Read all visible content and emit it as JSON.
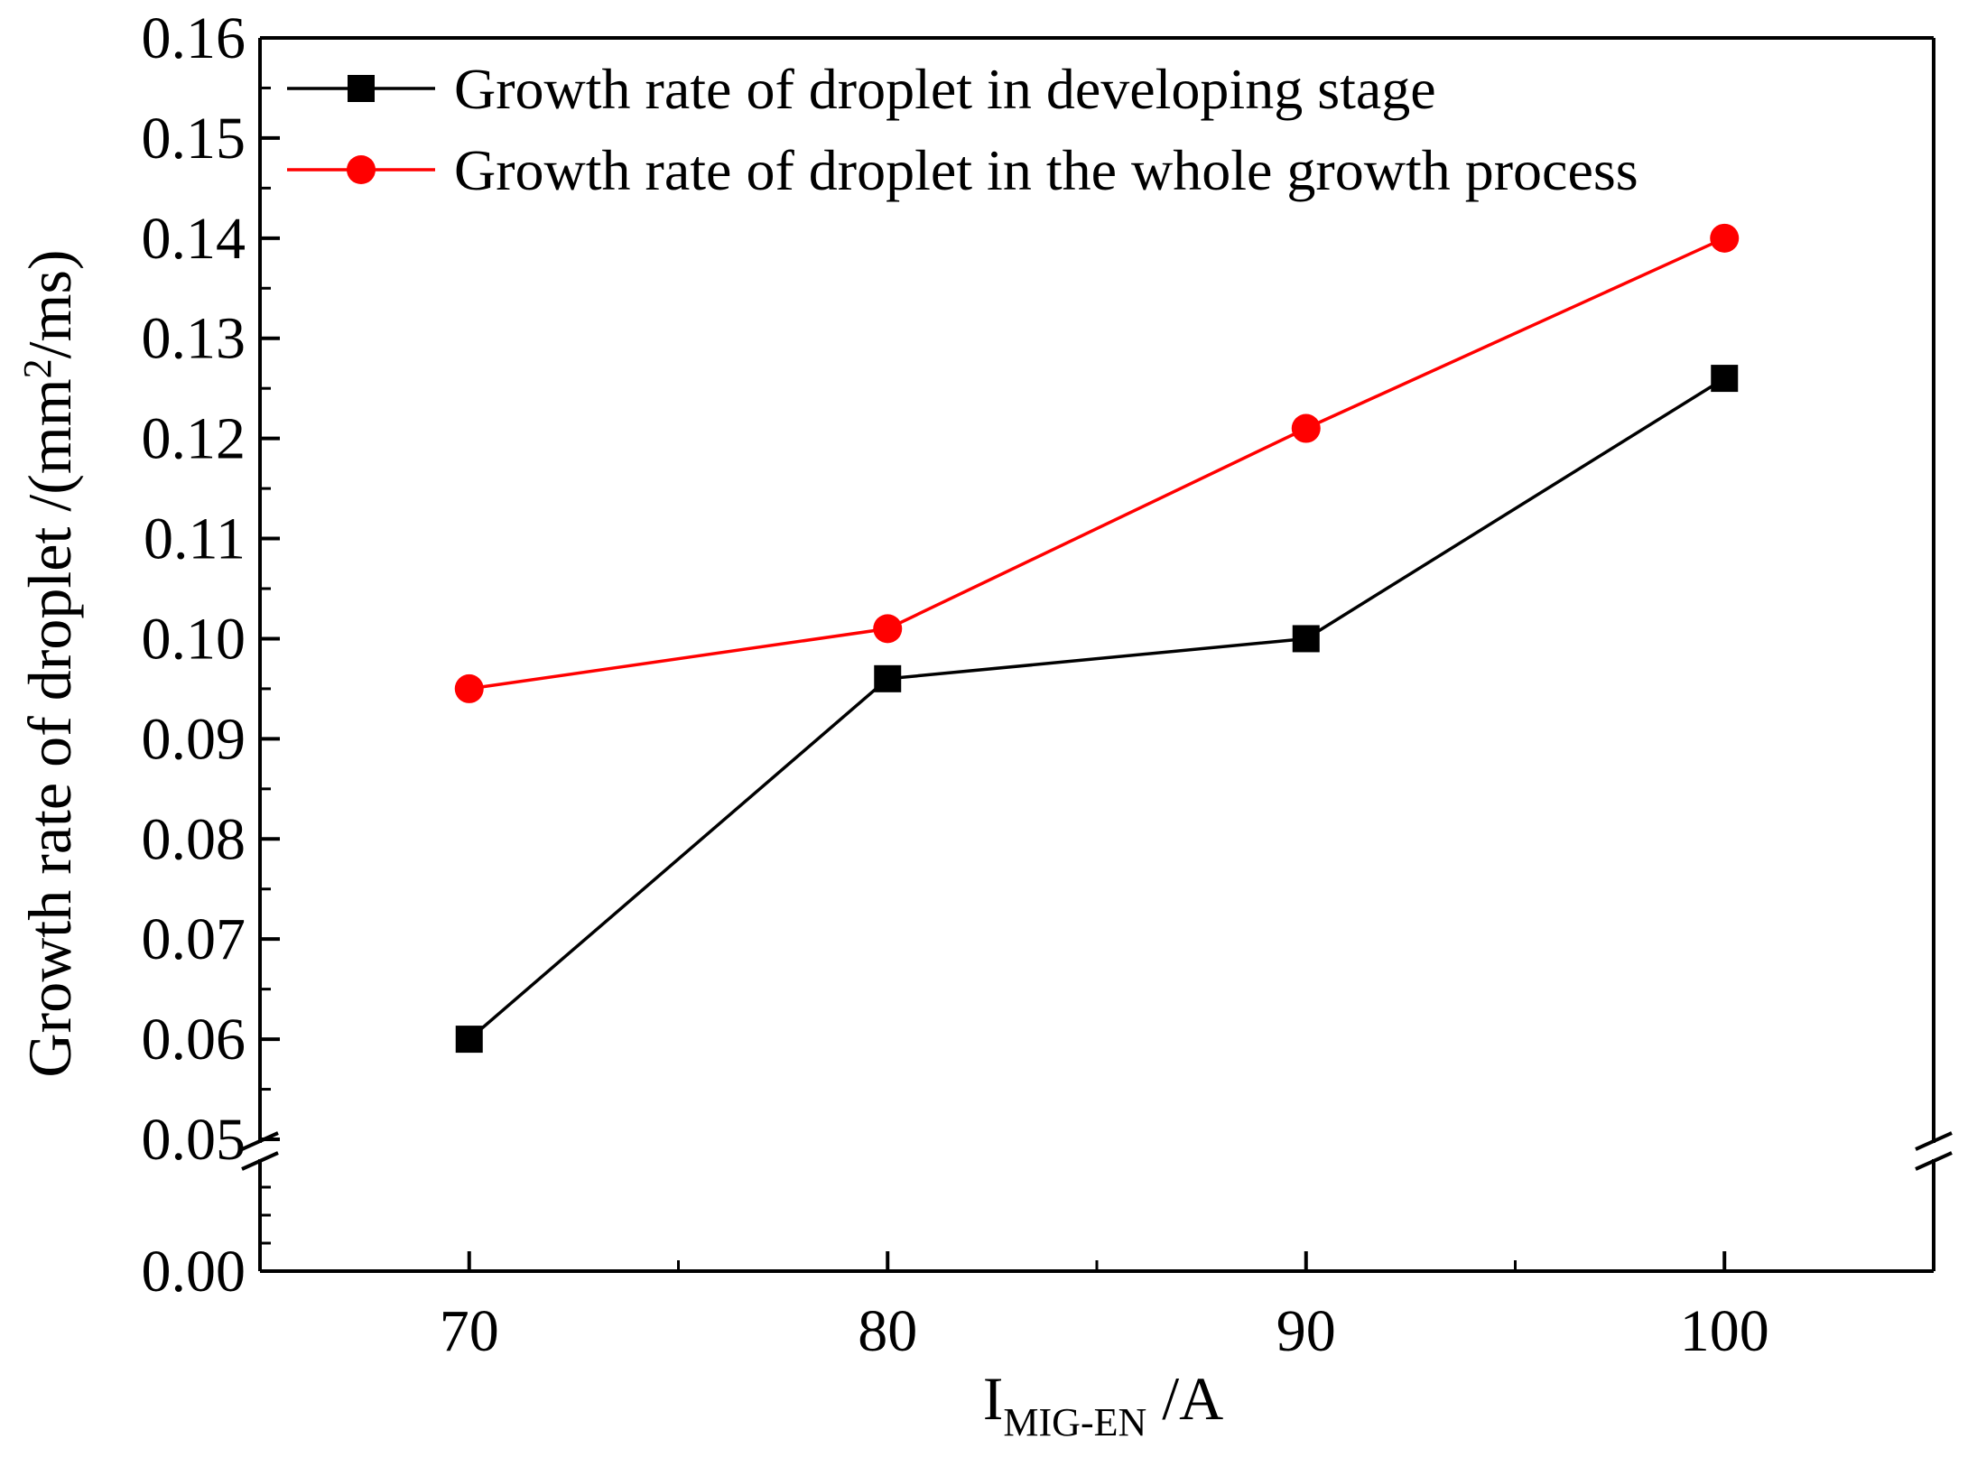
{
  "chart_data": {
    "type": "line",
    "x": [
      70,
      80,
      90,
      100
    ],
    "xticks": [
      70,
      80,
      90,
      100
    ],
    "xtick_labels": [
      "70",
      "80",
      "90",
      "100"
    ],
    "xlim": [
      65,
      105
    ],
    "xlabel": {
      "main": "I",
      "subscript": "MIG-EN",
      "suffix": " /A"
    },
    "ylabel": {
      "main": "Growth rate of droplet  /(mm",
      "superscript": "2",
      "suffix": "/ms)"
    },
    "y_axis_break": true,
    "y_lower_ticks": [
      0.0
    ],
    "y_lower_tick_labels": [
      "0.00"
    ],
    "y_upper_ticks": [
      0.05,
      0.06,
      0.07,
      0.08,
      0.09,
      0.1,
      0.11,
      0.12,
      0.13,
      0.14,
      0.15,
      0.16
    ],
    "y_upper_tick_labels": [
      "0.05",
      "0.06",
      "0.07",
      "0.08",
      "0.09",
      "0.10",
      "0.11",
      "0.12",
      "0.13",
      "0.14",
      "0.15",
      "0.16"
    ],
    "ylim_upper": [
      0.05,
      0.16
    ],
    "series": [
      {
        "name": "Growth rate of droplet in developing stage",
        "values": [
          0.06,
          0.096,
          0.1,
          0.126
        ],
        "color": "#000000",
        "marker": "square"
      },
      {
        "name": "Growth rate of droplet in the whole growth process",
        "values": [
          0.095,
          0.101,
          0.121,
          0.14
        ],
        "color": "#ff0000",
        "marker": "circle"
      }
    ],
    "legend_position": "top-left"
  }
}
